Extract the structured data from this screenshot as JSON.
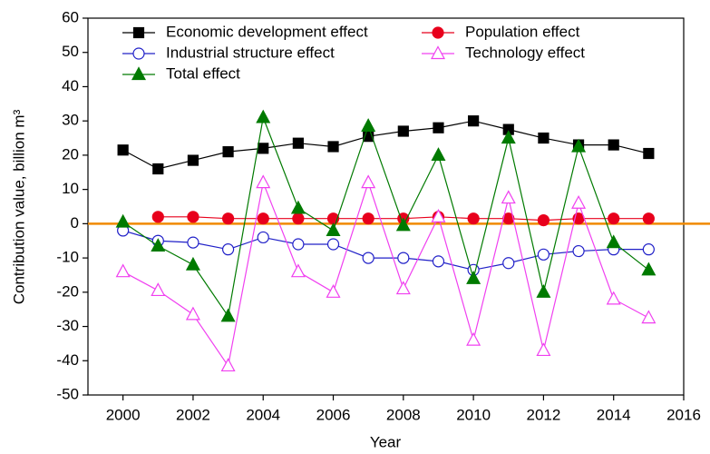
{
  "chart_data": {
    "type": "line",
    "x_label": "Year",
    "y_label": "Contribution value, billion m³",
    "x": [
      2000,
      2001,
      2002,
      2003,
      2004,
      2005,
      2006,
      2007,
      2008,
      2009,
      2010,
      2011,
      2012,
      2013,
      2014,
      2015
    ],
    "xlim": [
      1999,
      2016
    ],
    "xticks": [
      2000,
      2002,
      2004,
      2006,
      2008,
      2010,
      2012,
      2014,
      2016
    ],
    "ylim": [
      -50,
      60
    ],
    "yticks": [
      -50,
      -40,
      -30,
      -20,
      -10,
      0,
      10,
      20,
      30,
      40,
      50,
      60
    ],
    "hline": 0,
    "hline_color": "#f08a00",
    "series": [
      {
        "name": "Economic development effect",
        "color": "#000000",
        "marker": "square",
        "filled": true,
        "values": [
          21.5,
          16,
          18.5,
          21,
          22,
          23.5,
          22.5,
          25.5,
          27,
          28,
          30,
          27.5,
          25,
          23,
          23,
          20.5
        ]
      },
      {
        "name": "Population effect",
        "color": "#e8001c",
        "marker": "circle",
        "filled": true,
        "values": [
          null,
          2,
          2,
          1.5,
          1.5,
          1.5,
          1.5,
          1.5,
          1.5,
          2,
          1.5,
          1.5,
          1,
          1.5,
          1.5,
          1.5
        ]
      },
      {
        "name": "Industrial structure effect",
        "color": "#2020c8",
        "marker": "circle",
        "filled": false,
        "values": [
          -2,
          -5,
          -5.5,
          -7.5,
          -4,
          -6,
          -6,
          -10,
          -10,
          -11,
          -13.5,
          -11.5,
          -9,
          -8,
          -7.5,
          -7.5
        ]
      },
      {
        "name": "Technology effect",
        "color": "#f040f0",
        "marker": "triangle",
        "filled": false,
        "values": [
          -14,
          -19.5,
          -26.5,
          -41.5,
          12,
          -14,
          -20,
          12,
          -19,
          2,
          -34,
          7.5,
          -37,
          6,
          -22,
          -27.5
        ]
      },
      {
        "name": "Total effect",
        "color": "#007a00",
        "marker": "triangle",
        "filled": true,
        "values": [
          0.5,
          -6.5,
          -12,
          -27,
          31,
          4.5,
          -2,
          28.5,
          -0.5,
          20,
          -16,
          25,
          -20,
          22.5,
          -5.5,
          -13.5
        ]
      }
    ]
  }
}
